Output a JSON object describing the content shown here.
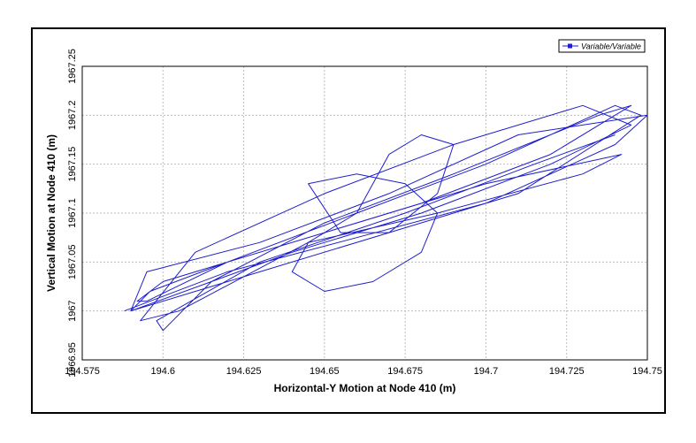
{
  "chart_data": {
    "type": "line",
    "xlabel": "Horizontal-Y Motion at Node 410 (m)",
    "ylabel": "Vertical Motion at Node 410 (m)",
    "xlim": [
      194.575,
      194.75
    ],
    "ylim": [
      1966.95,
      1967.25
    ],
    "x_ticks": [
      "194.575",
      "194.6",
      "194.625",
      "194.65",
      "194.675",
      "194.7",
      "194.725",
      "194.75"
    ],
    "y_ticks": [
      "1966.95",
      "1967",
      "1967.05",
      "1967.1",
      "1967.15",
      "1967.2",
      "1967.25"
    ],
    "grid": true,
    "legend_position": "top-right",
    "colors": {
      "series": "#1f1fcc"
    },
    "series": [
      {
        "name": "Variable/Variable",
        "x": [
          194.588,
          194.62,
          194.66,
          194.7,
          194.74,
          194.75,
          194.71,
          194.67,
          194.63,
          194.595,
          194.59,
          194.64,
          194.68,
          194.72,
          194.745,
          194.73,
          194.69,
          194.65,
          194.61,
          194.593,
          194.605,
          194.645,
          194.685,
          194.73,
          194.742,
          194.7,
          194.66,
          194.62,
          194.596,
          194.59,
          194.63,
          194.67,
          194.71,
          194.748,
          194.74,
          194.7,
          194.66,
          194.62,
          194.595,
          194.592,
          194.6,
          194.64,
          194.68,
          194.72,
          194.745,
          194.735,
          194.69,
          194.65,
          194.615,
          194.6,
          194.598,
          194.63,
          194.675,
          194.715,
          194.74
        ],
        "y": [
          1967.0,
          1967.04,
          1967.075,
          1967.11,
          1967.17,
          1967.2,
          1967.18,
          1967.12,
          1967.07,
          1967.04,
          1967.0,
          1967.06,
          1967.1,
          1967.15,
          1967.19,
          1967.21,
          1967.17,
          1967.12,
          1967.06,
          1966.99,
          1967.0,
          1967.07,
          1967.1,
          1967.14,
          1967.16,
          1967.13,
          1967.09,
          1967.05,
          1967.02,
          1967.0,
          1967.04,
          1967.08,
          1967.12,
          1967.2,
          1967.21,
          1967.15,
          1967.1,
          1967.05,
          1967.01,
          1967.01,
          1967.03,
          1967.07,
          1967.11,
          1967.16,
          1967.21,
          1967.2,
          1967.14,
          1967.09,
          1967.03,
          1966.98,
          1966.99,
          1967.05,
          1967.1,
          1967.15,
          1967.18
        ]
      },
      {
        "name": "",
        "x": [
          194.655,
          194.645,
          194.66,
          194.675,
          194.685,
          194.68,
          194.665,
          194.65,
          194.64,
          194.645,
          194.66,
          194.67,
          194.68,
          194.69,
          194.685,
          194.67,
          194.655
        ],
        "y": [
          1967.08,
          1967.13,
          1967.14,
          1967.13,
          1967.1,
          1967.06,
          1967.03,
          1967.02,
          1967.04,
          1967.07,
          1967.1,
          1967.16,
          1967.18,
          1967.17,
          1967.12,
          1967.08,
          1967.08
        ]
      }
    ]
  }
}
